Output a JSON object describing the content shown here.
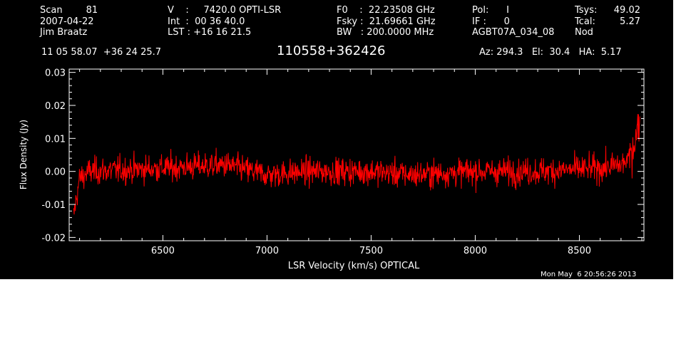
{
  "header": {
    "col1": [
      "Scan        81",
      "2007-04-22",
      "Jim Braatz"
    ],
    "col2": [
      "V    :     7420.0 OPTI-LSR",
      "Int  :  00 36 40.0",
      "LST : +16 16 21.5"
    ],
    "col3": [
      "F0    :  22.23508 GHz",
      "Fsky :  21.69661 GHz",
      "BW   : 200.0000 MHz"
    ],
    "col4": [
      "Pol:      I",
      "IF :      0",
      "AGBT07A_034_08"
    ],
    "col5a": [
      "Tsys:",
      "Tcal:",
      "Nod"
    ],
    "col5b": [
      "49.02",
      "5.27",
      ""
    ],
    "coords": "11 05 58.07  +36 24 25.7",
    "source": "110558+362426",
    "az_el_ha": "Az: 294.3   El:  30.4   HA:  5.17",
    "timestamp": "Mon May  6 20:56:26 2013"
  },
  "chart_data": {
    "type": "line",
    "xlabel": "LSR Velocity (km/s) OPTICAL",
    "ylabel": "Flux Density (Jy)",
    "xlim": [
      6050,
      8810
    ],
    "ylim": [
      -0.021,
      0.031
    ],
    "x_ticks": [
      6500,
      7000,
      7500,
      8000,
      8500
    ],
    "y_ticks": [
      -0.02,
      -0.01,
      0.0,
      0.01,
      0.02,
      0.03
    ],
    "x_tick_labels": [
      "6500",
      "7000",
      "7500",
      "8000",
      "8500"
    ],
    "y_tick_labels": [
      "-0.02",
      "-0.01",
      "0.00",
      "0.01",
      "0.02",
      "0.03"
    ],
    "series": [
      {
        "color": "#ff0000",
        "noise_rms": 0.0035,
        "baseline": [
          [
            6070,
            -0.014
          ],
          [
            6080,
            -0.01
          ],
          [
            6100,
            -0.002
          ],
          [
            6150,
            0.0
          ],
          [
            6500,
            0.001
          ],
          [
            6800,
            0.002
          ],
          [
            7000,
            -0.001
          ],
          [
            7200,
            0.0
          ],
          [
            7500,
            0.0
          ],
          [
            7700,
            -0.001
          ],
          [
            8000,
            0.0
          ],
          [
            8300,
            0.0
          ],
          [
            8600,
            0.001
          ],
          [
            8700,
            0.002
          ],
          [
            8740,
            0.004
          ],
          [
            8770,
            0.01
          ],
          [
            8790,
            0.016
          ]
        ]
      }
    ]
  }
}
